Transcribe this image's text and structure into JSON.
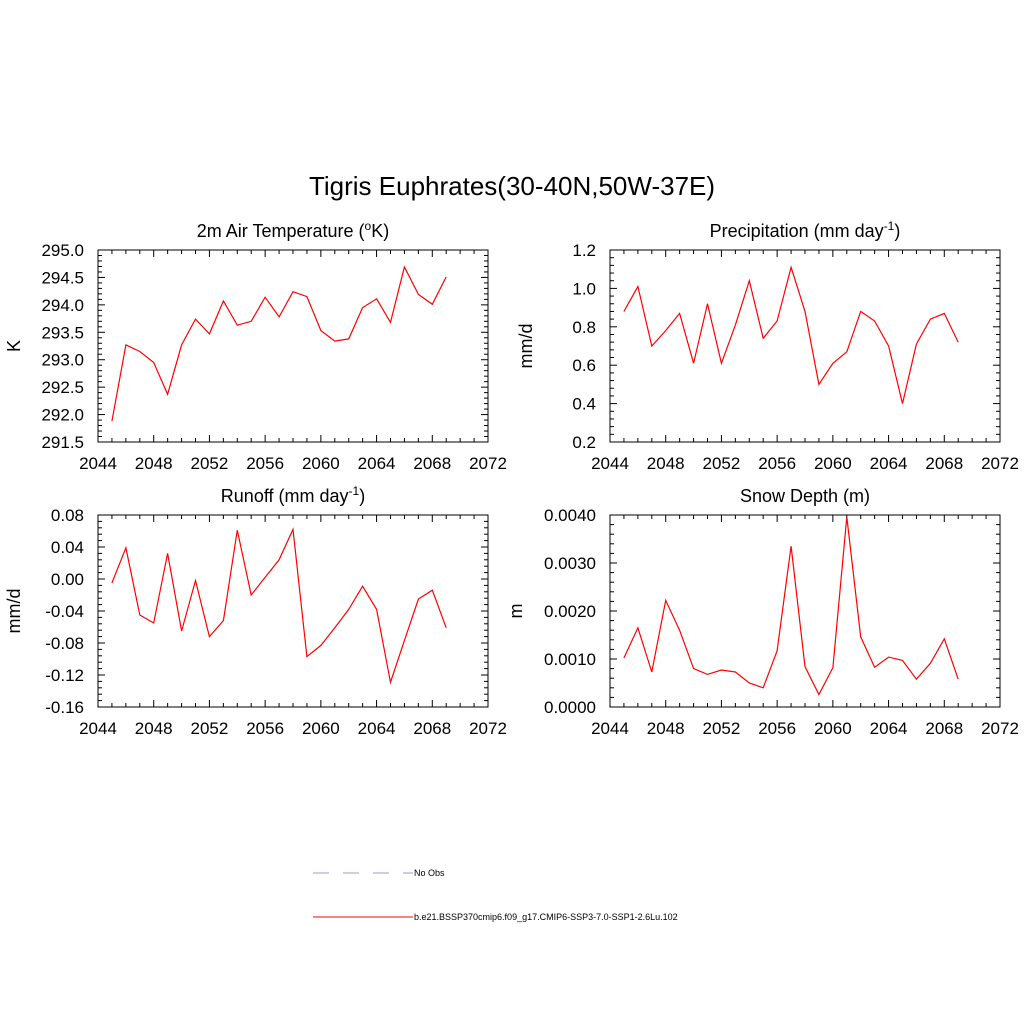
{
  "title": "Tigris Euphrates(30-40N,50W-37E)",
  "legend": [
    {
      "label": "No Obs",
      "color": "#9999dd",
      "dash": true
    },
    {
      "label": "b.e21.BSSP370cmip6.f09_g17.CMIP6-SSP3-7.0-SSP1-2.6Lu.102",
      "color": "#ff0000",
      "dash": false
    }
  ],
  "chart_data": [
    {
      "type": "line",
      "title": "2m Air Temperature (",
      "title_sup": "o",
      "title_tail": "K)",
      "ylabel": "K",
      "xlim": [
        2044,
        2072
      ],
      "ylim": [
        291.5,
        295.0
      ],
      "xticks": [
        "2044",
        "2048",
        "2052",
        "2056",
        "2060",
        "2064",
        "2068",
        "2072"
      ],
      "yticks": [
        "291.5",
        "292.0",
        "292.5",
        "293.0",
        "293.5",
        "294.0",
        "294.5",
        "295.0"
      ],
      "ytick_values": [
        291.5,
        292.0,
        292.5,
        293.0,
        293.5,
        294.0,
        294.5,
        295.0
      ],
      "series": [
        {
          "color": "#ff0000",
          "x": [
            2045,
            2046,
            2047,
            2048,
            2049,
            2050,
            2051,
            2052,
            2053,
            2054,
            2055,
            2056,
            2057,
            2058,
            2059,
            2060,
            2061,
            2062,
            2063,
            2064,
            2065,
            2066,
            2067,
            2068,
            2069
          ],
          "values": [
            291.88,
            293.27,
            293.15,
            292.95,
            292.37,
            293.27,
            293.74,
            293.47,
            294.07,
            293.63,
            293.7,
            294.14,
            293.78,
            294.24,
            294.15,
            293.53,
            293.34,
            293.38,
            293.95,
            294.11,
            293.68,
            294.69,
            294.19,
            294.01,
            294.51
          ]
        }
      ]
    },
    {
      "type": "line",
      "title": "Precipitation (mm day",
      "title_sup": "-1",
      "title_tail": ")",
      "ylabel": "mm/d",
      "xlim": [
        2044,
        2072
      ],
      "ylim": [
        0.2,
        1.2
      ],
      "xticks": [
        "2044",
        "2048",
        "2052",
        "2056",
        "2060",
        "2064",
        "2068",
        "2072"
      ],
      "yticks": [
        "0.2",
        "0.4",
        "0.6",
        "0.8",
        "1.0",
        "1.2"
      ],
      "ytick_values": [
        0.2,
        0.4,
        0.6,
        0.8,
        1.0,
        1.2
      ],
      "series": [
        {
          "color": "#ff0000",
          "x": [
            2045,
            2046,
            2047,
            2048,
            2049,
            2050,
            2051,
            2052,
            2053,
            2054,
            2055,
            2056,
            2057,
            2058,
            2059,
            2060,
            2061,
            2062,
            2063,
            2064,
            2065,
            2066,
            2067,
            2068,
            2069
          ],
          "values": [
            0.88,
            1.01,
            0.7,
            0.78,
            0.87,
            0.61,
            0.92,
            0.61,
            0.81,
            1.04,
            0.74,
            0.83,
            1.11,
            0.88,
            0.5,
            0.61,
            0.67,
            0.88,
            0.83,
            0.7,
            0.4,
            0.71,
            0.84,
            0.87,
            0.72
          ]
        }
      ]
    },
    {
      "type": "line",
      "title": "Runoff (mm day",
      "title_sup": "-1",
      "title_tail": ")",
      "ylabel": "mm/d",
      "xlim": [
        2044,
        2072
      ],
      "ylim": [
        -0.16,
        0.08
      ],
      "xticks": [
        "2044",
        "2048",
        "2052",
        "2056",
        "2060",
        "2064",
        "2068",
        "2072"
      ],
      "yticks": [
        "-0.16",
        "-0.12",
        "-0.08",
        "-0.04",
        "0.00",
        "0.04",
        "0.08"
      ],
      "ytick_values": [
        -0.16,
        -0.12,
        -0.08,
        -0.04,
        0.0,
        0.04,
        0.08
      ],
      "series": [
        {
          "color": "#ff0000",
          "x": [
            2045,
            2046,
            2047,
            2048,
            2049,
            2050,
            2051,
            2052,
            2053,
            2054,
            2055,
            2056,
            2057,
            2058,
            2059,
            2060,
            2061,
            2062,
            2063,
            2064,
            2065,
            2066,
            2067,
            2068,
            2069
          ],
          "values": [
            -0.005,
            0.039,
            -0.045,
            -0.055,
            0.032,
            -0.065,
            -0.002,
            -0.072,
            -0.052,
            0.061,
            -0.02,
            0.002,
            0.024,
            0.062,
            -0.097,
            -0.083,
            -0.061,
            -0.038,
            -0.009,
            -0.038,
            -0.129,
            -0.077,
            -0.025,
            -0.014,
            -0.061
          ]
        }
      ]
    },
    {
      "type": "line",
      "title": "Snow Depth (m)",
      "title_sup": "",
      "title_tail": "",
      "ylabel": "m",
      "xlim": [
        2044,
        2072
      ],
      "ylim": [
        0.0,
        0.004
      ],
      "xticks": [
        "2044",
        "2048",
        "2052",
        "2056",
        "2060",
        "2064",
        "2068",
        "2072"
      ],
      "yticks": [
        "0.0000",
        "0.0010",
        "0.0020",
        "0.0030",
        "0.0040"
      ],
      "ytick_values": [
        0.0,
        0.001,
        0.002,
        0.003,
        0.004
      ],
      "series": [
        {
          "color": "#ff0000",
          "x": [
            2045,
            2046,
            2047,
            2048,
            2049,
            2050,
            2051,
            2052,
            2053,
            2054,
            2055,
            2056,
            2057,
            2058,
            2059,
            2060,
            2061,
            2062,
            2063,
            2064,
            2065,
            2066,
            2067,
            2068,
            2069
          ],
          "values": [
            0.00102,
            0.00165,
            0.00073,
            0.00222,
            0.0016,
            0.0008,
            0.00068,
            0.00077,
            0.00073,
            0.0005,
            0.0004,
            0.00117,
            0.00335,
            0.00084,
            0.00026,
            0.00082,
            0.00396,
            0.00146,
            0.00083,
            0.00104,
            0.00097,
            0.00058,
            0.00091,
            0.00142,
            0.00058
          ]
        }
      ]
    }
  ]
}
